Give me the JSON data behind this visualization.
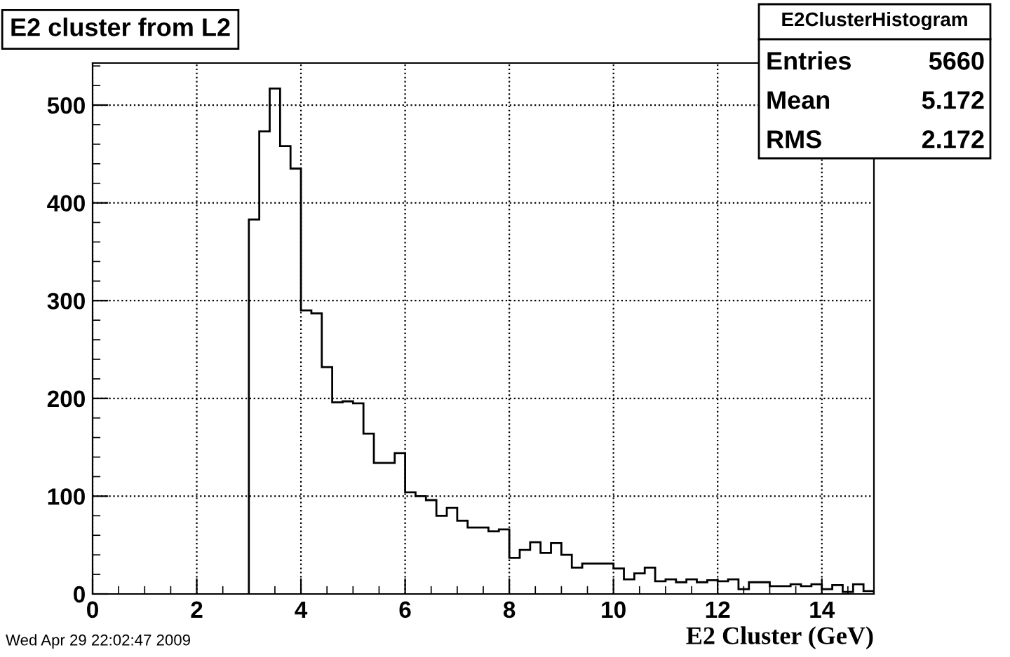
{
  "chart_data": {
    "type": "histogram",
    "title": "E2 cluster from L2",
    "xlabel": "E2 Cluster (GeV)",
    "bins": [
      3.0,
      3.2,
      3.4,
      3.6,
      3.8,
      4.0,
      4.2,
      4.4,
      4.6,
      4.8,
      5.0,
      5.2,
      5.4,
      5.6,
      5.8,
      6.0,
      6.2,
      6.4,
      6.6,
      6.8,
      7.0,
      7.2,
      7.4,
      7.6,
      7.8,
      8.0,
      8.2,
      8.4,
      8.6,
      8.8,
      9.0,
      9.2,
      9.4,
      9.6,
      9.8,
      10.0,
      10.2,
      10.4,
      10.6,
      10.8,
      11.0,
      11.2,
      11.4,
      11.6,
      11.8,
      12.0,
      12.2,
      12.4,
      12.6,
      12.8,
      13.0,
      13.2,
      13.4,
      13.6,
      13.8,
      14.0,
      14.2,
      14.4,
      14.6,
      14.8,
      15.0
    ],
    "values": [
      383,
      473,
      517,
      458,
      435,
      290,
      287,
      232,
      196,
      197,
      195,
      164,
      134,
      134,
      144,
      104,
      100,
      96,
      80,
      88,
      75,
      68,
      68,
      64,
      66,
      37,
      45,
      53,
      42,
      52,
      40,
      27,
      31,
      31,
      31,
      26,
      15,
      21,
      27,
      13,
      15,
      12,
      15,
      12,
      14,
      13,
      15,
      5,
      12,
      12,
      8,
      8,
      10,
      8,
      10,
      5,
      9,
      2,
      10,
      3
    ],
    "color": "#000000",
    "xlim": [
      0,
      15
    ],
    "xticks": [
      0,
      2,
      4,
      6,
      8,
      10,
      12,
      14
    ],
    "ylim": [
      0,
      543
    ],
    "yticks": [
      0,
      100,
      200,
      300,
      400,
      500
    ],
    "grid": true,
    "annotations": [
      "E2ClusterHistogram",
      "Entries",
      "5660",
      "Mean",
      "5.172",
      "RMS",
      "2.172",
      "Wed Apr 29 22:02:47 2009"
    ]
  }
}
